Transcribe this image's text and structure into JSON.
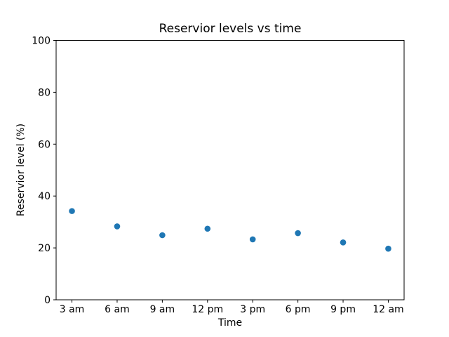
{
  "chart_data": {
    "type": "scatter",
    "title": "Reservior levels vs time",
    "xlabel": "Time",
    "ylabel": "Reservior level (%)",
    "categories": [
      "3 am",
      "6 am",
      "9 am",
      "12 pm",
      "3 pm",
      "6 pm",
      "9 pm",
      "12 am"
    ],
    "values": [
      34.2,
      28.3,
      24.9,
      27.4,
      23.3,
      25.7,
      22.1,
      19.7
    ],
    "ylim": [
      0,
      100
    ],
    "yticks": [
      0,
      20,
      40,
      60,
      80,
      100
    ],
    "marker_color": "#1f77b4",
    "grid": false,
    "legend": null,
    "background_color": "#ffffff",
    "axis_color": "#000000"
  }
}
